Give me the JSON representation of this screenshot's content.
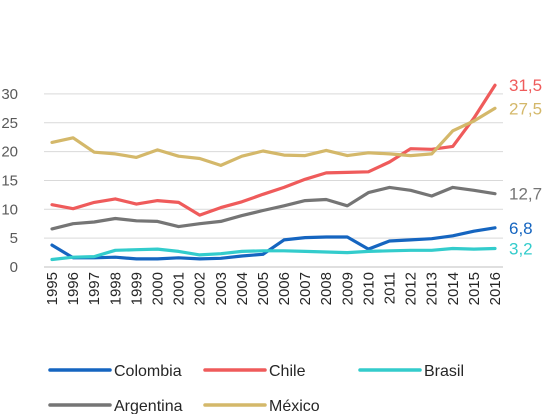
{
  "chart_data": {
    "type": "line",
    "title": "",
    "xlabel": "",
    "ylabel": "",
    "ylim": [
      0,
      33
    ],
    "yticks": [
      0,
      5,
      10,
      15,
      20,
      25,
      30
    ],
    "grid": true,
    "legend_position": "bottom",
    "categories": [
      "1995",
      "1996",
      "1997",
      "1998",
      "1999",
      "2000",
      "2001",
      "2002",
      "2003",
      "2004",
      "2005",
      "2006",
      "2007",
      "2008",
      "2009",
      "2010",
      "2011",
      "2012",
      "2013",
      "2014",
      "2015",
      "2016"
    ],
    "series": [
      {
        "name": "Colombia",
        "color": "#1565c0",
        "end_label": "6,8",
        "values": [
          3.8,
          1.6,
          1.6,
          1.7,
          1.4,
          1.4,
          1.6,
          1.4,
          1.5,
          1.9,
          2.2,
          4.7,
          5.1,
          5.2,
          5.2,
          3.1,
          4.5,
          4.7,
          4.9,
          5.4,
          6.2,
          6.8
        ]
      },
      {
        "name": "Chile",
        "color": "#ef5b5b",
        "end_label": "31,5",
        "values": [
          10.8,
          10.1,
          11.2,
          11.8,
          10.9,
          11.5,
          11.2,
          9.0,
          10.3,
          11.3,
          12.6,
          13.8,
          15.2,
          16.3,
          16.4,
          16.5,
          18.2,
          20.5,
          20.4,
          20.9,
          25.8,
          31.5
        ]
      },
      {
        "name": "Brasil",
        "color": "#33cccc",
        "end_label": "3,2",
        "values": [
          1.3,
          1.7,
          1.8,
          2.9,
          3.0,
          3.1,
          2.7,
          2.1,
          2.3,
          2.7,
          2.8,
          2.8,
          2.7,
          2.6,
          2.5,
          2.7,
          2.8,
          2.9,
          2.9,
          3.2,
          3.1,
          3.2
        ]
      },
      {
        "name": "Argentina",
        "color": "#757575",
        "end_label": "12,7",
        "values": [
          6.6,
          7.5,
          7.8,
          8.4,
          8.0,
          7.9,
          7.0,
          7.5,
          7.9,
          8.9,
          9.8,
          10.6,
          11.5,
          11.7,
          10.6,
          12.9,
          13.8,
          13.3,
          12.3,
          13.8,
          13.3,
          12.7
        ]
      },
      {
        "name": "México",
        "color": "#d4b86a",
        "end_label": "27,5",
        "values": [
          21.6,
          22.4,
          19.9,
          19.6,
          19.0,
          20.3,
          19.2,
          18.8,
          17.6,
          19.2,
          20.1,
          19.4,
          19.3,
          20.2,
          19.3,
          19.8,
          19.6,
          19.3,
          19.6,
          23.6,
          25.3,
          27.5
        ]
      }
    ]
  }
}
